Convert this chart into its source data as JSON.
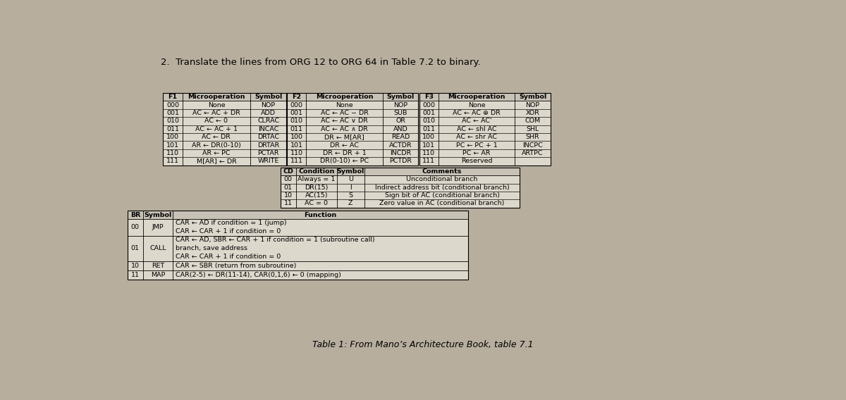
{
  "title": "2.  Translate the lines from ORG 12 to ORG 64 in Table 7.2 to binary.",
  "bg_color": "#b8ae9e",
  "table_bg": "#ddd8cc",
  "table_header_bg": "#c8c2b6",
  "font_size": 6.8,
  "caption": "Table 1: From Mano’s Architecture Book, table 7.1",
  "f1_header": [
    "F1",
    "Microoperation",
    "Symbol"
  ],
  "f1_rows": [
    [
      "000",
      "None",
      "NOP"
    ],
    [
      "001",
      "AC ← AC + DR",
      "ADD"
    ],
    [
      "010",
      "AC ← 0",
      "CLRAC"
    ],
    [
      "011",
      "AC ← AC + 1",
      "INCAC"
    ],
    [
      "100",
      "AC ← DR",
      "DRTAC"
    ],
    [
      "101",
      "AR ← DR(0-10)",
      "DRTAR"
    ],
    [
      "110",
      "AR ← PC",
      "PCTAR"
    ],
    [
      "111",
      "M[AR] ← DR",
      "WRITE"
    ]
  ],
  "f2_header": [
    "F2",
    "Microoperation",
    "Symbol"
  ],
  "f2_rows": [
    [
      "000",
      "None",
      "NOP"
    ],
    [
      "001",
      "AC ← AC − DR",
      "SUB"
    ],
    [
      "010",
      "AC ← AC ∨ DR",
      "OR"
    ],
    [
      "011",
      "AC ← AC ∧ DR",
      "AND"
    ],
    [
      "100",
      "DR ← M[AR]",
      "READ"
    ],
    [
      "101",
      "DR ← AC",
      "ACTDR"
    ],
    [
      "110",
      "DR ← DR + 1",
      "INCDR"
    ],
    [
      "111",
      "DR(0-10) ← PC",
      "PCTDR"
    ]
  ],
  "f3_header": [
    "F3",
    "Microoperation",
    "Symbol"
  ],
  "f3_rows": [
    [
      "000",
      "None",
      "NOP"
    ],
    [
      "001",
      "AC ← AC ⊕ DR",
      "XOR"
    ],
    [
      "010",
      "AC ← AC'",
      "COM"
    ],
    [
      "011",
      "AC ← shl AC",
      "SHL"
    ],
    [
      "100",
      "AC ← shr AC",
      "SHR"
    ],
    [
      "101",
      "PC ← PC + 1",
      "INCPC"
    ],
    [
      "110",
      "PC ← AR",
      "ARTPC"
    ],
    [
      "111",
      "Reserved",
      ""
    ]
  ],
  "cd_header": [
    "CD",
    "Condition",
    "Symbol",
    "Comments"
  ],
  "cd_rows": [
    [
      "00",
      "Always = 1",
      "U",
      "Unconditional branch"
    ],
    [
      "01",
      "DR(15)",
      "I",
      "Indirect address bit (conditional branch)"
    ],
    [
      "10",
      "AC(15)",
      "S",
      "Sign bit of AC (conditional branch)"
    ],
    [
      "11",
      "AC = 0",
      "Z",
      "Zero value in AC (conditional branch)"
    ]
  ],
  "br_header": [
    "BR",
    "Symbol",
    "Function"
  ],
  "br_rows": [
    [
      "00",
      "JMP",
      "CAR ← AD if condition = 1 (jump)\nCAR ← CAR + 1 if condition = 0"
    ],
    [
      "01",
      "CALL",
      "CAR ← AD, SBR ← CAR + 1 if condition = 1 (subroutine call)\nbranch, save address\nCAR ← CAR + 1 if condition = 0"
    ],
    [
      "10",
      "RET",
      "CAR ← SBR (return from subroutine)"
    ],
    [
      "11",
      "MAP",
      "CAR(2-5) ← DR(11-14), CAR(0,1,6) ← 0 (mapping)"
    ]
  ]
}
